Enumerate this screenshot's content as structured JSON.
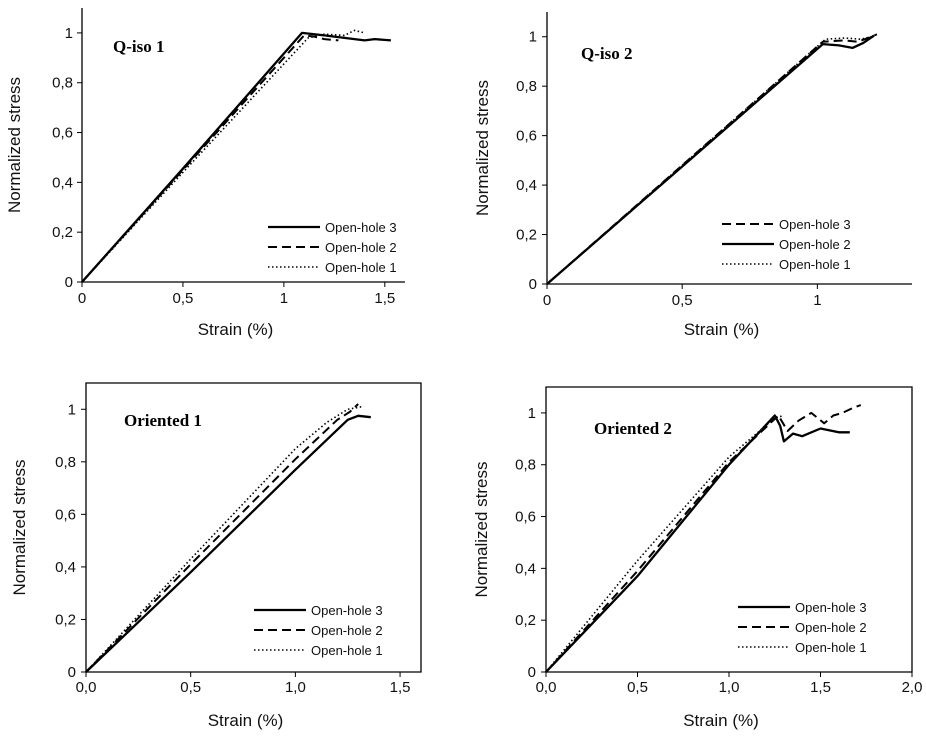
{
  "chart_data": [
    {
      "type": "line",
      "panel_label": "Q-iso 1",
      "xlabel": "Strain (%)",
      "ylabel": "Normalized stress",
      "xlim": [
        0,
        1.6
      ],
      "ylim": [
        0,
        1.1
      ],
      "xticks": [
        0,
        0.5,
        1,
        1.5
      ],
      "xtick_labels": [
        "0",
        "0,5",
        "1",
        "1,5"
      ],
      "yticks": [
        0,
        0.2,
        0.4,
        0.6,
        0.8,
        1
      ],
      "ytick_labels": [
        "0",
        "0,2",
        "0,4",
        "0,6",
        "0,8",
        "1"
      ],
      "legend_position": "bottom-right",
      "series": [
        {
          "name": "Open-hole 3",
          "style": "solid",
          "points": [
            [
              0,
              0
            ],
            [
              0.5,
              0.455
            ],
            [
              1.09,
              1.0
            ],
            [
              1.2,
              0.99
            ],
            [
              1.3,
              0.98
            ],
            [
              1.4,
              0.97
            ],
            [
              1.45,
              0.975
            ],
            [
              1.53,
              0.97
            ]
          ]
        },
        {
          "name": "Open-hole 2",
          "style": "dashed",
          "points": [
            [
              0,
              0
            ],
            [
              0.5,
              0.45
            ],
            [
              1.1,
              0.99
            ],
            [
              1.15,
              0.985
            ],
            [
              1.2,
              0.975
            ],
            [
              1.27,
              0.97
            ]
          ]
        },
        {
          "name": "Open-hole 1",
          "style": "dotted",
          "points": [
            [
              0,
              0
            ],
            [
              0.5,
              0.44
            ],
            [
              1.12,
              0.98
            ],
            [
              1.2,
              0.995
            ],
            [
              1.3,
              0.99
            ],
            [
              1.35,
              1.01
            ],
            [
              1.4,
              1.0
            ]
          ]
        }
      ]
    },
    {
      "type": "line",
      "panel_label": "Q-iso 2",
      "xlabel": "Strain (%)",
      "ylabel": "Normalized stress",
      "xlim": [
        0,
        1.35
      ],
      "ylim": [
        0,
        1.1
      ],
      "xticks": [
        0,
        0.5,
        1
      ],
      "xtick_labels": [
        "0",
        "0,5",
        "1"
      ],
      "yticks": [
        0,
        0.2,
        0.4,
        0.6,
        0.8,
        1
      ],
      "ytick_labels": [
        "0",
        "0,2",
        "0,4",
        "0,6",
        "0,8",
        "1"
      ],
      "legend_position": "bottom-right",
      "series": [
        {
          "name": "Open-hole 3",
          "style": "dashed",
          "points": [
            [
              0,
              0
            ],
            [
              0.5,
              0.48
            ],
            [
              1.02,
              0.98
            ],
            [
              1.1,
              0.985
            ],
            [
              1.15,
              0.98
            ],
            [
              1.2,
              1.0
            ],
            [
              1.22,
              1.01
            ]
          ]
        },
        {
          "name": "Open-hole 2",
          "style": "solid",
          "points": [
            [
              0,
              0
            ],
            [
              0.5,
              0.475
            ],
            [
              1.02,
              0.97
            ],
            [
              1.08,
              0.965
            ],
            [
              1.13,
              0.955
            ],
            [
              1.17,
              0.975
            ],
            [
              1.21,
              1.005
            ]
          ]
        },
        {
          "name": "Open-hole 1",
          "style": "dotted",
          "points": [
            [
              0,
              0
            ],
            [
              0.5,
              0.48
            ],
            [
              1.03,
              0.99
            ],
            [
              1.1,
              0.995
            ],
            [
              1.16,
              0.99
            ],
            [
              1.2,
              1.0
            ]
          ]
        }
      ]
    },
    {
      "type": "line",
      "panel_label": "Oriented 1",
      "xlabel": "Strain (%)",
      "ylabel": "Normalized  stress",
      "xlim": [
        0,
        1.6
      ],
      "ylim": [
        0,
        1.1
      ],
      "xticks": [
        0,
        0.5,
        1,
        1.5
      ],
      "xtick_labels": [
        "0,0",
        "0,5",
        "1,0",
        "1,5"
      ],
      "yticks": [
        0,
        0.2,
        0.4,
        0.6,
        0.8,
        1
      ],
      "ytick_labels": [
        "0",
        "0,2",
        "0,4",
        "0,6",
        "0,8",
        "1"
      ],
      "legend_position": "bottom-right",
      "series": [
        {
          "name": "Open-hole 3",
          "style": "solid",
          "points": [
            [
              0,
              0
            ],
            [
              0.5,
              0.38
            ],
            [
              1.0,
              0.77
            ],
            [
              1.25,
              0.96
            ],
            [
              1.3,
              0.975
            ],
            [
              1.36,
              0.97
            ]
          ]
        },
        {
          "name": "Open-hole 2",
          "style": "dashed",
          "points": [
            [
              0,
              0
            ],
            [
              0.5,
              0.41
            ],
            [
              1.0,
              0.81
            ],
            [
              1.2,
              0.96
            ],
            [
              1.26,
              0.99
            ],
            [
              1.3,
              1.02
            ]
          ]
        },
        {
          "name": "Open-hole 1",
          "style": "dotted",
          "points": [
            [
              0,
              0
            ],
            [
              0.5,
              0.43
            ],
            [
              1.0,
              0.85
            ],
            [
              1.15,
              0.95
            ],
            [
              1.25,
              1.0
            ],
            [
              1.32,
              1.01
            ]
          ]
        }
      ]
    },
    {
      "type": "line",
      "panel_label": "Oriented 2",
      "xlabel": "Strain (%)",
      "ylabel": "Normalized  stress",
      "xlim": [
        0,
        2.0
      ],
      "ylim": [
        0,
        1.1
      ],
      "xticks": [
        0,
        0.5,
        1,
        1.5,
        2
      ],
      "xtick_labels": [
        "0,0",
        "0,5",
        "1,0",
        "1,5",
        "2,0"
      ],
      "yticks": [
        0,
        0.2,
        0.4,
        0.6,
        0.8,
        1
      ],
      "ytick_labels": [
        "0",
        "0,2",
        "0,4",
        "0,6",
        "0,8",
        "1"
      ],
      "legend_position": "bottom-right",
      "series": [
        {
          "name": "Open-hole 3",
          "style": "solid",
          "points": [
            [
              0,
              0
            ],
            [
              0.5,
              0.37
            ],
            [
              1.0,
              0.8
            ],
            [
              1.25,
              0.99
            ],
            [
              1.28,
              0.95
            ],
            [
              1.3,
              0.89
            ],
            [
              1.35,
              0.92
            ],
            [
              1.4,
              0.91
            ],
            [
              1.5,
              0.94
            ],
            [
              1.6,
              0.925
            ],
            [
              1.66,
              0.925
            ]
          ]
        },
        {
          "name": "Open-hole 2",
          "style": "dashed",
          "points": [
            [
              0,
              0
            ],
            [
              0.5,
              0.39
            ],
            [
              1.0,
              0.81
            ],
            [
              1.27,
              0.99
            ],
            [
              1.32,
              0.93
            ],
            [
              1.38,
              0.97
            ],
            [
              1.45,
              1.0
            ],
            [
              1.52,
              0.96
            ],
            [
              1.57,
              0.99
            ],
            [
              1.62,
              1.0
            ],
            [
              1.68,
              1.02
            ],
            [
              1.72,
              1.03
            ]
          ]
        },
        {
          "name": "Open-hole 1",
          "style": "dotted",
          "points": [
            [
              0,
              0
            ],
            [
              0.5,
              0.43
            ],
            [
              1.0,
              0.83
            ],
            [
              1.25,
              0.98
            ],
            [
              1.3,
              0.99
            ]
          ]
        }
      ]
    }
  ]
}
